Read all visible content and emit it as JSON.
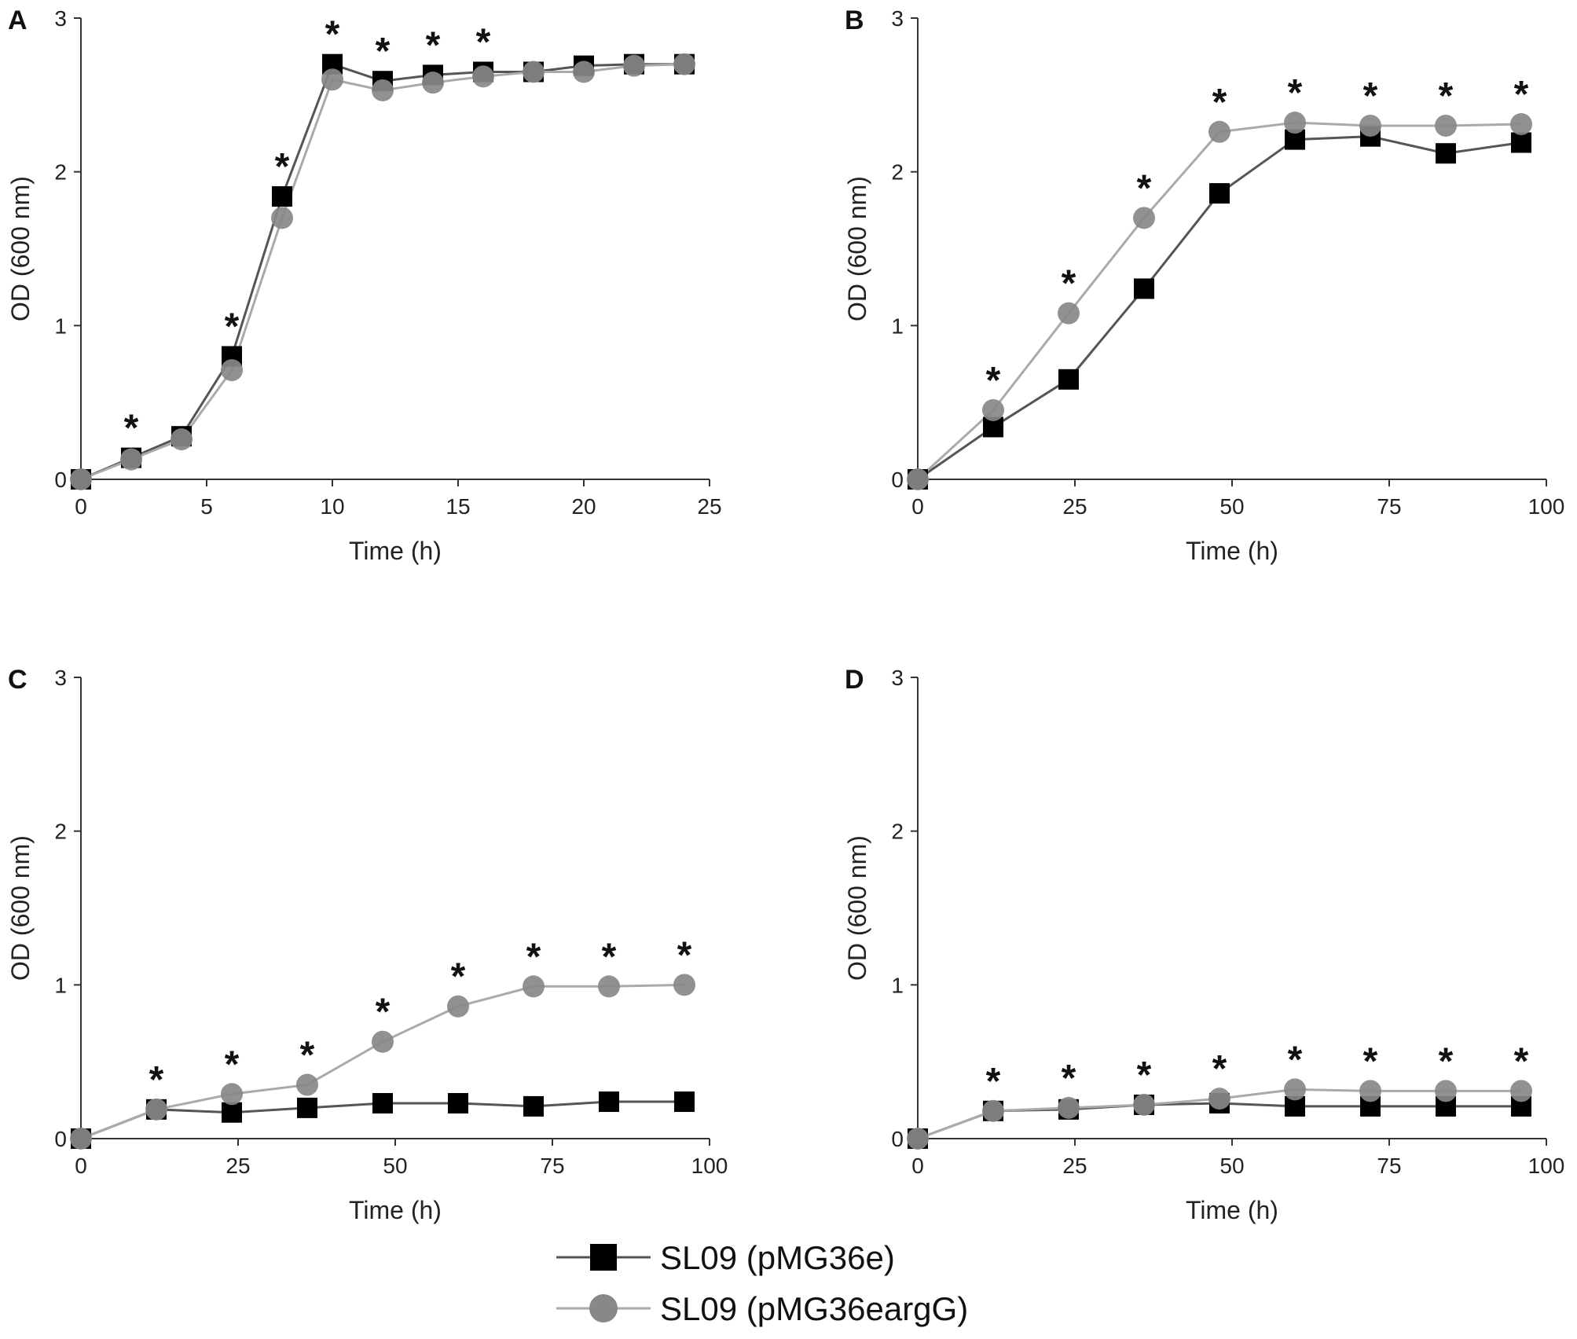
{
  "chart_data": [
    {
      "type": "line",
      "panel_label": "A",
      "xlabel": "Time (h)",
      "ylabel": "OD (600 nm)",
      "xlim": [
        0,
        25
      ],
      "ylim": [
        0,
        3
      ],
      "xticks": [
        0,
        5,
        10,
        15,
        20,
        25
      ],
      "yticks": [
        0,
        1,
        2,
        3
      ],
      "significance_marker": "*",
      "significance_x": [
        2,
        6,
        8,
        10,
        12,
        14,
        16
      ],
      "series": [
        {
          "name": "SL09 (pMG36e)",
          "marker": "square",
          "color": "#000000",
          "line_color": "#555555",
          "x": [
            0,
            2,
            4,
            6,
            8,
            10,
            12,
            14,
            16,
            18,
            20,
            22,
            24
          ],
          "y": [
            0.0,
            0.14,
            0.28,
            0.8,
            1.84,
            2.7,
            2.59,
            2.63,
            2.65,
            2.65,
            2.69,
            2.7,
            2.7
          ]
        },
        {
          "name": "SL09 (pMG36eargG)",
          "marker": "circle",
          "color": "#888888",
          "line_color": "#aaaaaa",
          "x": [
            0,
            2,
            4,
            6,
            8,
            10,
            12,
            14,
            16,
            18,
            20,
            22,
            24
          ],
          "y": [
            0.0,
            0.13,
            0.26,
            0.71,
            1.7,
            2.6,
            2.53,
            2.58,
            2.62,
            2.65,
            2.65,
            2.69,
            2.7
          ]
        }
      ]
    },
    {
      "type": "line",
      "panel_label": "B",
      "xlabel": "Time (h)",
      "ylabel": "OD (600 nm)",
      "xlim": [
        0,
        100
      ],
      "ylim": [
        0,
        3
      ],
      "xticks": [
        0,
        25,
        50,
        75,
        100
      ],
      "yticks": [
        0,
        1,
        2,
        3
      ],
      "significance_marker": "*",
      "significance_x": [
        12,
        24,
        36,
        48,
        60,
        72,
        84,
        96
      ],
      "series": [
        {
          "name": "SL09 (pMG36e)",
          "marker": "square",
          "color": "#000000",
          "line_color": "#555555",
          "x": [
            0,
            12,
            24,
            36,
            48,
            60,
            72,
            84,
            96
          ],
          "y": [
            0.0,
            0.34,
            0.65,
            1.24,
            1.86,
            2.21,
            2.23,
            2.12,
            2.19
          ]
        },
        {
          "name": "SL09 (pMG36eargG)",
          "marker": "circle",
          "color": "#888888",
          "line_color": "#aaaaaa",
          "x": [
            0,
            12,
            24,
            36,
            48,
            60,
            72,
            84,
            96
          ],
          "y": [
            0.0,
            0.45,
            1.08,
            1.7,
            2.26,
            2.32,
            2.3,
            2.3,
            2.31
          ]
        }
      ]
    },
    {
      "type": "line",
      "panel_label": "C",
      "xlabel": "Time (h)",
      "ylabel": "OD (600 nm)",
      "xlim": [
        0,
        100
      ],
      "ylim": [
        0,
        3
      ],
      "xticks": [
        0,
        25,
        50,
        75,
        100
      ],
      "yticks": [
        0,
        1,
        2,
        3
      ],
      "significance_marker": "*",
      "significance_x": [
        12,
        24,
        36,
        48,
        60,
        72,
        84,
        96
      ],
      "series": [
        {
          "name": "SL09 (pMG36e)",
          "marker": "square",
          "color": "#000000",
          "line_color": "#555555",
          "x": [
            0,
            12,
            24,
            36,
            48,
            60,
            72,
            84,
            96
          ],
          "y": [
            0.0,
            0.19,
            0.17,
            0.2,
            0.23,
            0.23,
            0.21,
            0.24,
            0.24
          ]
        },
        {
          "name": "SL09 (pMG36eargG)",
          "marker": "circle",
          "color": "#888888",
          "line_color": "#aaaaaa",
          "x": [
            0,
            12,
            24,
            36,
            48,
            60,
            72,
            84,
            96
          ],
          "y": [
            0.0,
            0.19,
            0.29,
            0.35,
            0.63,
            0.86,
            0.99,
            0.99,
            1.0
          ]
        }
      ]
    },
    {
      "type": "line",
      "panel_label": "D",
      "xlabel": "Time (h)",
      "ylabel": "OD (600 nm)",
      "xlim": [
        0,
        100
      ],
      "ylim": [
        0,
        3
      ],
      "xticks": [
        0,
        25,
        50,
        75,
        100
      ],
      "yticks": [
        0,
        1,
        2,
        3
      ],
      "significance_marker": "*",
      "significance_x": [
        12,
        24,
        36,
        48,
        60,
        72,
        84,
        96
      ],
      "series": [
        {
          "name": "SL09 (pMG36e)",
          "marker": "square",
          "color": "#000000",
          "line_color": "#555555",
          "x": [
            0,
            12,
            24,
            36,
            48,
            60,
            72,
            84,
            96
          ],
          "y": [
            0.0,
            0.18,
            0.19,
            0.22,
            0.23,
            0.21,
            0.21,
            0.21,
            0.21
          ]
        },
        {
          "name": "SL09 (pMG36eargG)",
          "marker": "circle",
          "color": "#888888",
          "line_color": "#aaaaaa",
          "x": [
            0,
            12,
            24,
            36,
            48,
            60,
            72,
            84,
            96
          ],
          "y": [
            0.0,
            0.18,
            0.2,
            0.22,
            0.26,
            0.32,
            0.31,
            0.31,
            0.31
          ]
        }
      ]
    }
  ],
  "legend": {
    "position": "bottom-center",
    "items": [
      {
        "label": "SL09 (pMG36e)",
        "marker": "square",
        "color": "#000000"
      },
      {
        "label": "SL09 (pMG36eargG)",
        "marker": "circle",
        "color": "#888888"
      }
    ]
  }
}
